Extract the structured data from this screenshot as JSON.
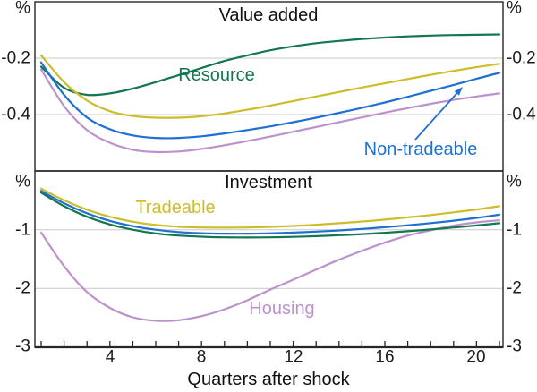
{
  "figure": {
    "xlabel": "Quarters after shock",
    "xticks": [
      "4",
      "8",
      "12",
      "16",
      "20"
    ],
    "unit_label": "%",
    "colors": {
      "grid": "#c9c9c9",
      "axis": "#262626",
      "resource": "#15774e",
      "tradeable": "#cdbd2b",
      "non_tradeable": "#2070d2",
      "housing": "#bb92cc"
    }
  },
  "chart_data": [
    {
      "type": "line",
      "title": "Value added",
      "ylabel": "%",
      "ylim": [
        -0.6,
        0
      ],
      "ytick_labels": [
        "-0.2",
        "-0.4"
      ],
      "ytick_values": [
        -0.2,
        -0.4
      ],
      "grid": true,
      "x": [
        1,
        2,
        3,
        4,
        5,
        6,
        7,
        8,
        9,
        10,
        11,
        12,
        13,
        14,
        15,
        16,
        17,
        18,
        19,
        20,
        21
      ],
      "annotations": [
        {
          "type": "arrow",
          "points_to_series": "Non-tradeable"
        }
      ],
      "series": [
        {
          "name": "Resource",
          "color": "#15774e",
          "values": [
            -0.23,
            -0.305,
            -0.33,
            -0.325,
            -0.308,
            -0.285,
            -0.26,
            -0.235,
            -0.21,
            -0.19,
            -0.172,
            -0.158,
            -0.147,
            -0.139,
            -0.132,
            -0.127,
            -0.123,
            -0.12,
            -0.118,
            -0.117,
            -0.116
          ]
        },
        {
          "name": "Tradeable",
          "color": "#cdbd2b",
          "values": [
            -0.19,
            -0.285,
            -0.35,
            -0.388,
            -0.405,
            -0.411,
            -0.411,
            -0.406,
            -0.396,
            -0.383,
            -0.368,
            -0.352,
            -0.336,
            -0.32,
            -0.304,
            -0.289,
            -0.274,
            -0.259,
            -0.245,
            -0.232,
            -0.22
          ]
        },
        {
          "name": "Non-tradeable",
          "color": "#2070d2",
          "values": [
            -0.215,
            -0.33,
            -0.41,
            -0.452,
            -0.474,
            -0.483,
            -0.483,
            -0.477,
            -0.467,
            -0.455,
            -0.442,
            -0.427,
            -0.411,
            -0.394,
            -0.376,
            -0.357,
            -0.337,
            -0.316,
            -0.295,
            -0.273,
            -0.252
          ]
        },
        {
          "name": "Housing",
          "color": "#bb92cc",
          "values": [
            -0.24,
            -0.37,
            -0.455,
            -0.5,
            -0.525,
            -0.533,
            -0.531,
            -0.522,
            -0.509,
            -0.494,
            -0.478,
            -0.461,
            -0.444,
            -0.427,
            -0.41,
            -0.393,
            -0.377,
            -0.362,
            -0.348,
            -0.336,
            -0.325
          ]
        }
      ]
    },
    {
      "type": "line",
      "title": "Investment",
      "ylabel": "%",
      "ylim": [
        -3,
        0
      ],
      "ytick_labels": [
        "-1",
        "-2",
        "-3"
      ],
      "ytick_values": [
        -1,
        -2,
        -3
      ],
      "grid": true,
      "x": [
        1,
        2,
        3,
        4,
        5,
        6,
        7,
        8,
        9,
        10,
        11,
        12,
        13,
        14,
        15,
        16,
        17,
        18,
        19,
        20,
        21
      ],
      "series": [
        {
          "name": "Resource",
          "color": "#15774e",
          "values": [
            -0.37,
            -0.6,
            -0.78,
            -0.91,
            -1.0,
            -1.065,
            -1.1,
            -1.12,
            -1.13,
            -1.133,
            -1.13,
            -1.122,
            -1.11,
            -1.094,
            -1.075,
            -1.052,
            -1.026,
            -0.996,
            -0.963,
            -0.927,
            -0.89
          ]
        },
        {
          "name": "Tradeable",
          "color": "#cdbd2b",
          "values": [
            -0.3,
            -0.5,
            -0.66,
            -0.78,
            -0.865,
            -0.92,
            -0.95,
            -0.962,
            -0.966,
            -0.962,
            -0.952,
            -0.936,
            -0.915,
            -0.89,
            -0.861,
            -0.828,
            -0.791,
            -0.75,
            -0.705,
            -0.656,
            -0.6
          ]
        },
        {
          "name": "Non-tradeable",
          "color": "#2070d2",
          "values": [
            -0.34,
            -0.55,
            -0.72,
            -0.85,
            -0.94,
            -1.0,
            -1.04,
            -1.06,
            -1.068,
            -1.068,
            -1.062,
            -1.05,
            -1.033,
            -1.012,
            -0.987,
            -0.958,
            -0.925,
            -0.888,
            -0.847,
            -0.8,
            -0.745
          ]
        },
        {
          "name": "Housing",
          "color": "#bb92cc",
          "values": [
            -1.05,
            -1.62,
            -2.06,
            -2.33,
            -2.49,
            -2.55,
            -2.54,
            -2.47,
            -2.355,
            -2.2,
            -2.02,
            -1.85,
            -1.68,
            -1.51,
            -1.36,
            -1.22,
            -1.1,
            -1.01,
            -0.93,
            -0.875,
            -0.84
          ]
        }
      ]
    }
  ]
}
